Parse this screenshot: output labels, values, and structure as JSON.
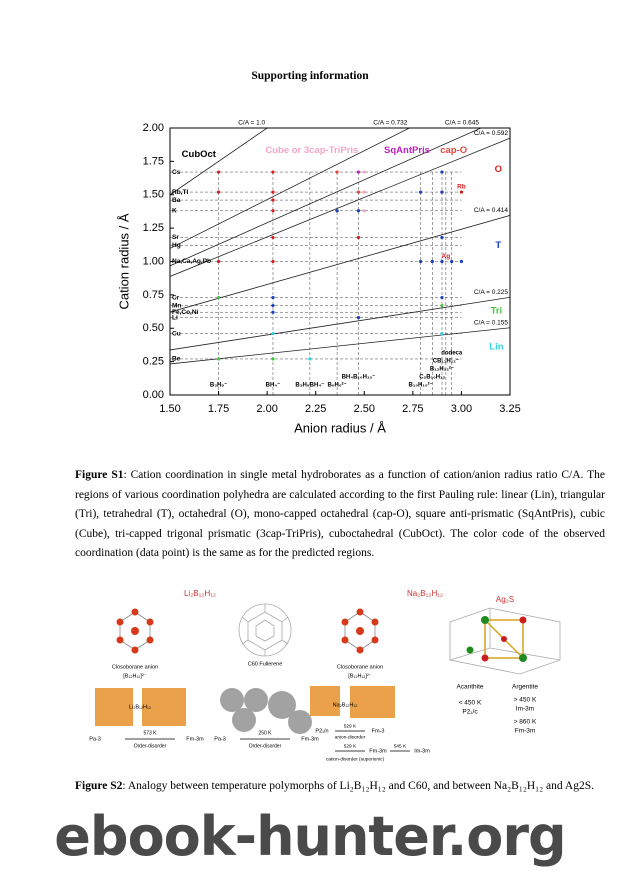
{
  "header": {
    "title": "Supporting information"
  },
  "chart_data": {
    "type": "scatter",
    "xlabel": "Anion radius / Å",
    "ylabel": "Cation radius / Å",
    "xlim": [
      1.5,
      3.25
    ],
    "ylim": [
      0,
      2
    ],
    "xticks": [
      {
        "value": 1.5,
        "label": "1.50"
      },
      {
        "value": 1.75,
        "label": "1.75"
      },
      {
        "value": 2,
        "label": "2.00"
      },
      {
        "value": 2.25,
        "label": "2.25"
      },
      {
        "value": 2.5,
        "label": "2.50"
      },
      {
        "value": 2.75,
        "label": "2.75"
      },
      {
        "value": 3,
        "label": "3.00"
      },
      {
        "value": 3.25,
        "label": "3.25"
      }
    ],
    "yticks": [
      {
        "value": 0,
        "label": "0.00"
      },
      {
        "value": 0.25,
        "label": "0.25"
      },
      {
        "value": 0.5,
        "label": "0.50"
      },
      {
        "value": 0.75,
        "label": "0.75"
      },
      {
        "value": 1,
        "label": "1.00"
      },
      {
        "value": 1.25,
        "label": "1.25"
      },
      {
        "value": 1.5,
        "label": "1.50"
      },
      {
        "value": 1.75,
        "label": "1.75"
      },
      {
        "value": 2,
        "label": "2.00"
      }
    ],
    "ratios": {
      "values": [
        1.0,
        0.732,
        0.645,
        0.592,
        0.414,
        0.225,
        0.155
      ],
      "value_labels": [
        "C/A = 1.0",
        "C/A = 0.732",
        "C/A = 0.645",
        "C/A = 0.592",
        "C/A = 0.414",
        "C/A = 0.225",
        "C/A = 0.155"
      ]
    },
    "cations": {
      "labels": [
        "Cs",
        "Rb,Tl",
        "Ba",
        "K",
        "Sr",
        "Hg",
        "Na,Ca,Ag,Pb",
        "Cr",
        "Mn",
        "Fe,Co,Ni",
        "Li",
        "Cu",
        "Be"
      ],
      "values": [
        1.67,
        1.52,
        1.46,
        1.38,
        1.18,
        1.12,
        1.0,
        0.73,
        0.67,
        0.62,
        0.58,
        0.46,
        0.27
      ]
    },
    "anions": {
      "labels": [
        "B₃H₈⁻",
        "BH₄⁻",
        "B₃H₈BH₄⁻",
        "B₆H₆²⁻",
        "BH₄B₁₀H₁₀⁻",
        "B₁₀H₁₀²⁻",
        "C₂B₁₀H₁₂",
        "B₁₂H₁₂²⁻",
        "CB₁₁H₁₂⁻",
        "dodeca"
      ],
      "values": [
        1.75,
        2.03,
        2.22,
        2.36,
        2.47,
        2.79,
        2.85,
        2.9,
        2.92,
        2.95
      ]
    },
    "regions": [
      {
        "name": "CubOct",
        "color": "#000000",
        "x": [],
        "y": []
      },
      {
        "name": "Cube or 3cap-TriPris",
        "color": "#f4a6c8",
        "x": [
          2.5,
          2.5,
          2.5
        ],
        "y": [
          1.67,
          1.52,
          1.38
        ]
      },
      {
        "name": "SqAntPris",
        "color": "#c21fc2",
        "x": [
          2.47,
          2.9
        ],
        "y": [
          1.67,
          1.52
        ]
      },
      {
        "name": "cap-O",
        "color": "#e0463a",
        "x": [
          2.36,
          2.47
        ],
        "y": [
          1.67,
          1.52
        ]
      },
      {
        "name": "O",
        "color": "#d62020",
        "x": [
          1.75,
          2.03,
          1.75,
          2.03,
          2.03,
          2.03,
          2.03,
          2.03,
          1.75,
          2.47,
          3.0
        ],
        "y": [
          1.67,
          1.67,
          1.52,
          1.52,
          1.46,
          1.38,
          1.18,
          1.0,
          1.0,
          1.18,
          1.52
        ]
      },
      {
        "name": "T",
        "color": "#1a3fbf",
        "x": [
          2.36,
          2.47,
          2.79,
          2.85,
          2.9,
          2.95,
          3.0,
          2.9,
          2.9,
          2.79,
          2.9,
          2.47,
          2.03,
          2.03,
          2.03,
          2.9
        ],
        "y": [
          1.38,
          1.38,
          1.0,
          1.0,
          1.0,
          1.0,
          1.0,
          1.18,
          1.67,
          1.52,
          1.52,
          0.58,
          0.62,
          0.67,
          0.73,
          0.73
        ]
      },
      {
        "name": "Tri",
        "color": "#3cc83c",
        "x": [
          1.75,
          1.75,
          2.03,
          2.9
        ],
        "y": [
          0.73,
          0.27,
          0.27,
          0.67
        ]
      },
      {
        "name": "Lin",
        "color": "#2fd0e0",
        "x": [
          2.22,
          2.03,
          2.9
        ],
        "y": [
          0.27,
          0.46,
          0.46
        ]
      }
    ],
    "annotations": [
      "Rb",
      "Ag"
    ]
  },
  "figure_s1": {
    "label": "Figure S1",
    "caption": ": Cation coordination in single metal hydroborates as a function of cation/anion radius ratio C/A. The regions of various coordination polyhedra are calculated according to the first Pauling rule: linear (Lin), triangular (Tri), tetrahedral (T), octahedral (O), mono-capped octahedral (cap-O), square anti-prismatic (SqAntPris), cubic (Cube), tri-capped trigonal prismatic (3cap-TriPris), cuboctahedral (CubOct). The color code of the observed coordination (data point) is the same as for the predicted regions."
  },
  "figure_s2": {
    "label": "Figure S2",
    "caption": ": Analogy between temperature polymorphs of Li₂B₁₂H₁₂ and C60, and between Na₂B₁₂H₁₂ and Ag2S.",
    "labels": [
      "Li₂B₁₂H₁₂",
      "Na₂B₁₂H₁₂",
      "Ag₂S",
      "Closoborane anion",
      "[B₁₂H₁₂]²⁻",
      "C60 Fullerene",
      "Closoborane anion",
      "[B₁₂H₁₂]²⁻",
      "Li₂B₁₂H₁₂",
      "Na₂B₁₂H₁₂",
      "Pa-3",
      "573 K",
      "Order-disorder",
      "Fm-3m",
      "Pa-3",
      "250 K",
      "Order-disorder",
      "Fm-3m",
      "P2₁/n",
      "529 K",
      "anion-disorder",
      "Fm-3",
      "529 K",
      "Fm-3m",
      "545 K",
      "Im-3m",
      "cation-disorder (superionic)",
      "Acanthite",
      "Argentite",
      "< 450 K",
      "P2₁/c",
      "> 450 K",
      "Im-3m",
      "> 860 K",
      "Fm-3m"
    ]
  },
  "watermark": "ebook-hunter.org"
}
